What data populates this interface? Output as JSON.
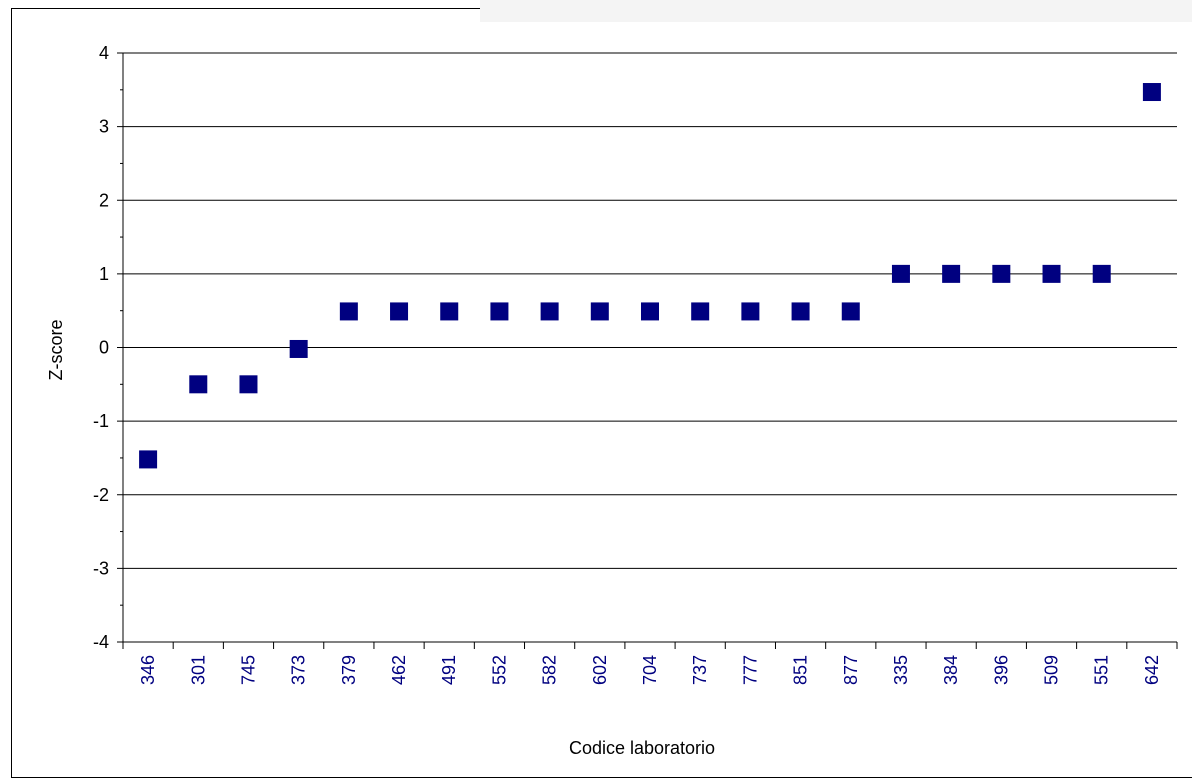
{
  "chart_data": {
    "type": "scatter",
    "title": "",
    "xlabel": "Codice laboratorio",
    "ylabel": "Z-score",
    "ylim": [
      -4,
      4
    ],
    "yticks": [
      "-4",
      "-3",
      "-2",
      "-1",
      "0",
      "1",
      "2",
      "3",
      "4"
    ],
    "grid": true,
    "legend": "none",
    "marker_color": "#000080",
    "tick_label_color": "#000080",
    "categories": [
      "346",
      "301",
      "745",
      "373",
      "379",
      "462",
      "491",
      "552",
      "582",
      "602",
      "704",
      "737",
      "777",
      "851",
      "877",
      "335",
      "384",
      "396",
      "509",
      "551",
      "642"
    ],
    "series": [
      {
        "values": [
          -1.52,
          -0.5,
          -0.5,
          -0.02,
          0.49,
          0.49,
          0.49,
          0.49,
          0.49,
          0.49,
          0.49,
          0.49,
          0.49,
          0.49,
          0.49,
          1.0,
          1.0,
          1.0,
          1.0,
          1.0,
          3.47
        ]
      }
    ]
  }
}
